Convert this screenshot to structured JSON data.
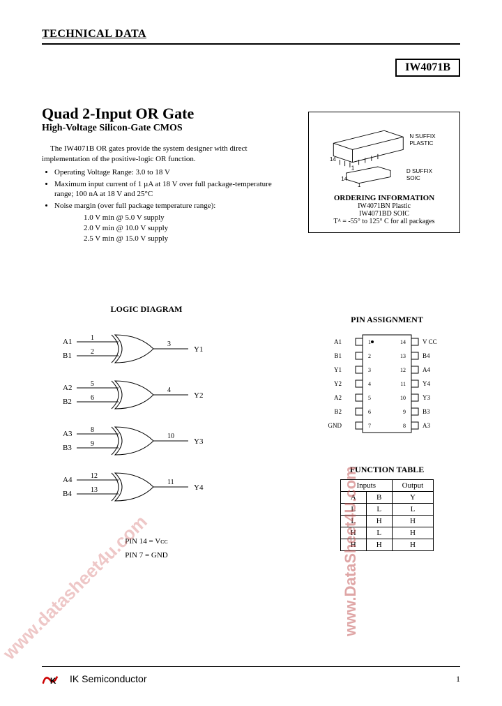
{
  "header": {
    "title": "TECHNICAL DATA"
  },
  "part_number": "IW4071B",
  "title": "Quad 2-Input OR Gate",
  "subtitle": "High-Voltage Silicon-Gate CMOS",
  "description": {
    "intro": "The IW4071B OR gates provide the system designer with direct implementation of the positive-logic OR function.",
    "bullets": [
      "Operating Voltage Range: 3.0 to 18 V",
      "Maximum input current of 1 µA at 18 V over full package-temperature range; 100 nA at 18 V and 25°C",
      "Noise margin (over full package temperature range):"
    ],
    "noise_lines": [
      "1.0 V min @ 5.0 V supply",
      "2.0 V min @ 10.0 V supply",
      "2.5 V min @ 15.0 V supply"
    ]
  },
  "package_box": {
    "pin14_label": "14",
    "pin1_label": "1",
    "n_suffix": "N SUFFIX",
    "n_plastic": "PLASTIC",
    "d_suffix": "D SUFFIX",
    "d_soic": "SOIC",
    "ord_title": "ORDERING INFORMATION",
    "ord1": "IW4071BN Plastic",
    "ord2": "IW4071BD SOIC",
    "ord3": "Tᴬ = -55° to 125° C for all packages"
  },
  "logic": {
    "title": "LOGIC DIAGRAM",
    "gates": [
      {
        "inA": "A1",
        "inB": "B1",
        "pinA": "1",
        "pinB": "2",
        "pinY": "3",
        "out": "Y1"
      },
      {
        "inA": "A2",
        "inB": "B2",
        "pinA": "5",
        "pinB": "6",
        "pinY": "4",
        "out": "Y2"
      },
      {
        "inA": "A3",
        "inB": "B3",
        "pinA": "8",
        "pinB": "9",
        "pinY": "10",
        "out": "Y3"
      },
      {
        "inA": "A4",
        "inB": "B4",
        "pinA": "12",
        "pinB": "13",
        "pinY": "11",
        "out": "Y4"
      }
    ],
    "note1": "PIN 14 = Vᴄᴄ",
    "note2": "PIN 7 = GND"
  },
  "pin_assignment": {
    "title": "PIN ASSIGNMENT",
    "left": [
      {
        "name": "A1",
        "num": "1"
      },
      {
        "name": "B1",
        "num": "2"
      },
      {
        "name": "Y1",
        "num": "3"
      },
      {
        "name": "Y2",
        "num": "4"
      },
      {
        "name": "A2",
        "num": "5"
      },
      {
        "name": "B2",
        "num": "6"
      },
      {
        "name": "GND",
        "num": "7"
      }
    ],
    "right": [
      {
        "name": "V CC",
        "num": "14"
      },
      {
        "name": "B4",
        "num": "13"
      },
      {
        "name": "A4",
        "num": "12"
      },
      {
        "name": "Y4",
        "num": "11"
      },
      {
        "name": "Y3",
        "num": "10"
      },
      {
        "name": "B3",
        "num": "9"
      },
      {
        "name": "A3",
        "num": "8"
      }
    ]
  },
  "function_table": {
    "title": "FUNCTION TABLE",
    "head_inputs": "Inputs",
    "head_output": "Output",
    "cols": [
      "A",
      "B",
      "Y"
    ],
    "rows": [
      [
        "L",
        "L",
        "L"
      ],
      [
        "L",
        "H",
        "H"
      ],
      [
        "H",
        "L",
        "H"
      ],
      [
        "H",
        "H",
        "H"
      ]
    ]
  },
  "watermark": {
    "text1": "www.datasheet4u.com",
    "text2": "www.DataSheet4U.com"
  },
  "footer": {
    "company": "IK Semiconductor",
    "page": "1"
  },
  "colors": {
    "text": "#000000",
    "watermark": "#d06060",
    "line": "#000000"
  }
}
